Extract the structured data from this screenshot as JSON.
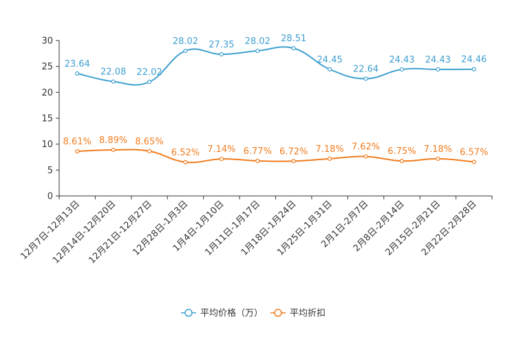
{
  "chart_data": {
    "type": "line",
    "title": "",
    "xlabel": "",
    "ylabel": "",
    "ylim": [
      0,
      30
    ],
    "yticks": [
      0,
      5,
      10,
      15,
      20,
      25,
      30
    ],
    "grid": false,
    "legend_position": "bottom",
    "categories": [
      "12月7日-12月13日",
      "12月14日-12月20日",
      "12月21日-12月27日",
      "12月28日-1月3日",
      "1月4日-1月10日",
      "1月11日-1月17日",
      "1月18日-1月24日",
      "1月25日-1月31日",
      "2月1日-2月7日",
      "2月8日-2月14日",
      "2月15日-2月21日",
      "2月22日-2月28日"
    ],
    "series": [
      {
        "name": "平均价格（万）",
        "color": "#3fa0d0",
        "values": [
          23.64,
          22.08,
          22.02,
          28.02,
          27.35,
          28.02,
          28.51,
          24.45,
          22.64,
          24.43,
          24.43,
          24.46
        ],
        "labels": [
          "23.64",
          "22.08",
          "22.02",
          "28.02",
          "27.35",
          "28.02",
          "28.51",
          "24.45",
          "22.64",
          "24.43",
          "24.43",
          "24.46"
        ]
      },
      {
        "name": "平均折扣",
        "color": "#f07c1e",
        "values": [
          8.61,
          8.89,
          8.65,
          6.52,
          7.14,
          6.77,
          6.72,
          7.18,
          7.62,
          6.75,
          7.18,
          6.57
        ],
        "labels": [
          "8.61%",
          "8.89%",
          "8.65%",
          "6.52%",
          "7.14%",
          "6.77%",
          "6.72%",
          "7.18%",
          "7.62%",
          "6.75%",
          "7.18%",
          "6.57%"
        ]
      }
    ]
  }
}
